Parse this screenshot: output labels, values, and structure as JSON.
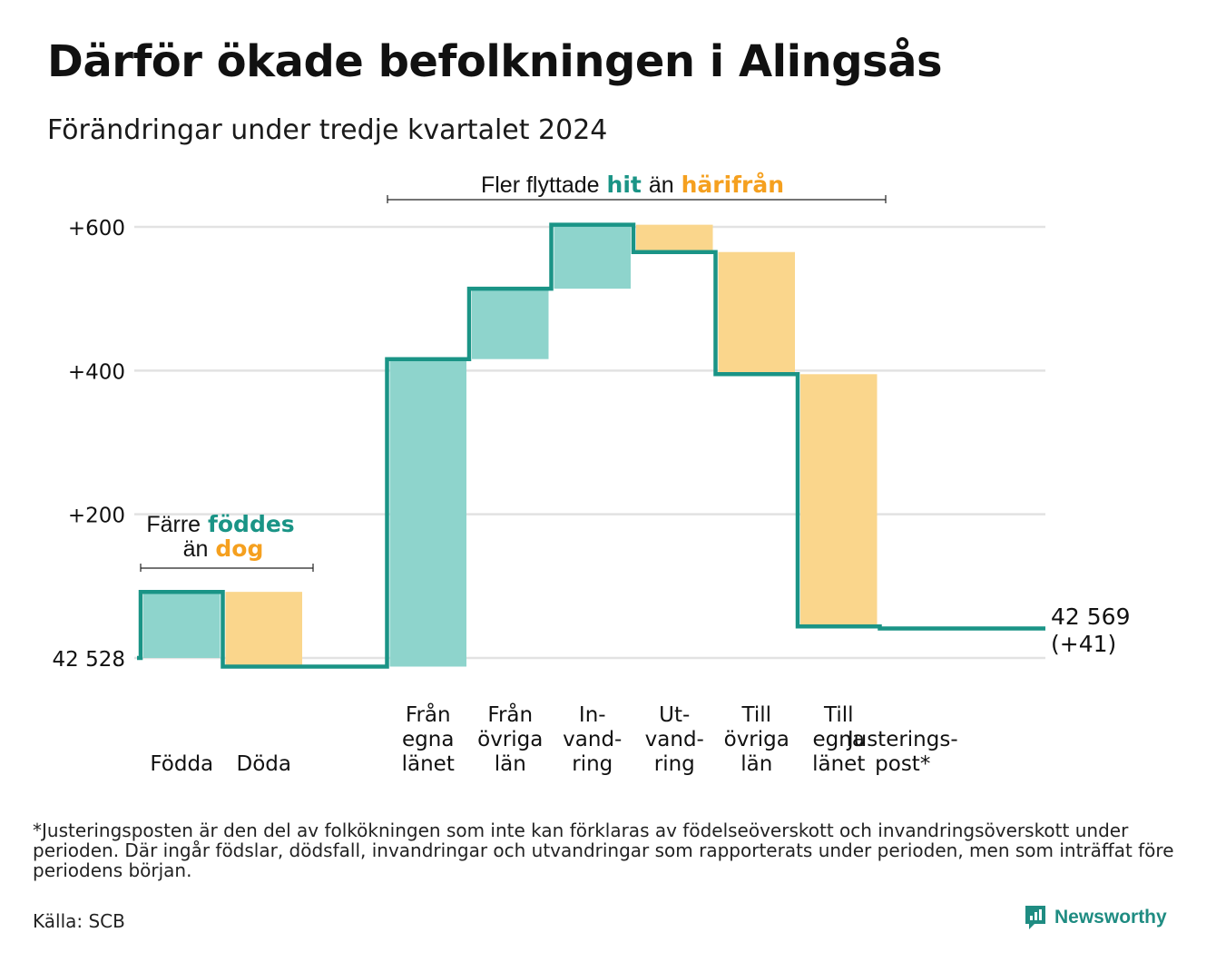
{
  "title": "Därför ökade befolkningen i Alingsås",
  "subtitle": "Förändringar under tredje kvartalet 2024",
  "colors": {
    "inflow": "#8ed4cc",
    "outflow": "#fad68c",
    "line": "#1a9486",
    "accent_teal": "#1a9486",
    "accent_orange": "#f5a01f"
  },
  "chart_data": {
    "type": "waterfall",
    "start_value": 42528,
    "start_label": "42 528",
    "end_value": 42569,
    "end_label": "42 569",
    "end_change_label": "(+41)",
    "yticks": [
      {
        "value": 600,
        "label": "+600"
      },
      {
        "value": 400,
        "label": "+400"
      },
      {
        "value": 200,
        "label": "+200"
      },
      {
        "value": 0,
        "label": "42 528"
      }
    ],
    "grid": true,
    "steps": [
      {
        "key": "fodda",
        "label": [
          "Födda"
        ],
        "value": 92,
        "group": 0
      },
      {
        "key": "doda",
        "label": [
          "Döda"
        ],
        "value": -104,
        "group": 0
      },
      {
        "key": "gap",
        "label": [],
        "value": 0,
        "gap": true
      },
      {
        "key": "fran_egna",
        "label": [
          "Från",
          "egna",
          "länet"
        ],
        "value": 428,
        "group": 1
      },
      {
        "key": "fran_ovriga",
        "label": [
          "Från",
          "övriga",
          "län"
        ],
        "value": 98,
        "group": 1
      },
      {
        "key": "invandring",
        "label": [
          "In-",
          "vand-",
          "ring"
        ],
        "value": 89,
        "group": 1
      },
      {
        "key": "utvandring",
        "label": [
          "Ut-",
          "vand-",
          "ring"
        ],
        "value": -38,
        "group": 1
      },
      {
        "key": "till_ovriga",
        "label": [
          "Till",
          "övriga",
          "län"
        ],
        "value": -170,
        "group": 1
      },
      {
        "key": "till_egna",
        "label": [
          "Till",
          "egna",
          "länet"
        ],
        "value": -351,
        "group": 1
      },
      {
        "key": "justeringspost",
        "label": [
          "Justerings-",
          "post*"
        ],
        "value": -3,
        "group": 2
      }
    ],
    "annotations": {
      "births": {
        "line1_prefix": "Färre",
        "line1_highlight": "föddes",
        "line2_prefix": "än",
        "line2_highlight": "dog"
      },
      "migration": {
        "prefix": "Fler flyttade",
        "highlight1": "hit",
        "middle": "än",
        "highlight2": "härifrån"
      }
    }
  },
  "footnote": "*Justeringsposten är den del av folkökningen som inte kan förklaras av födelseöverskott och invandringsöverskott under perioden. Där ingår födslar, dödsfall, invandringar och utvandringar som rapporterats under perioden, men som inträffat före periodens början.",
  "source": "Källa: SCB",
  "brand": {
    "name": "Newsworthy",
    "icon": "newsworthy-logo-icon"
  }
}
